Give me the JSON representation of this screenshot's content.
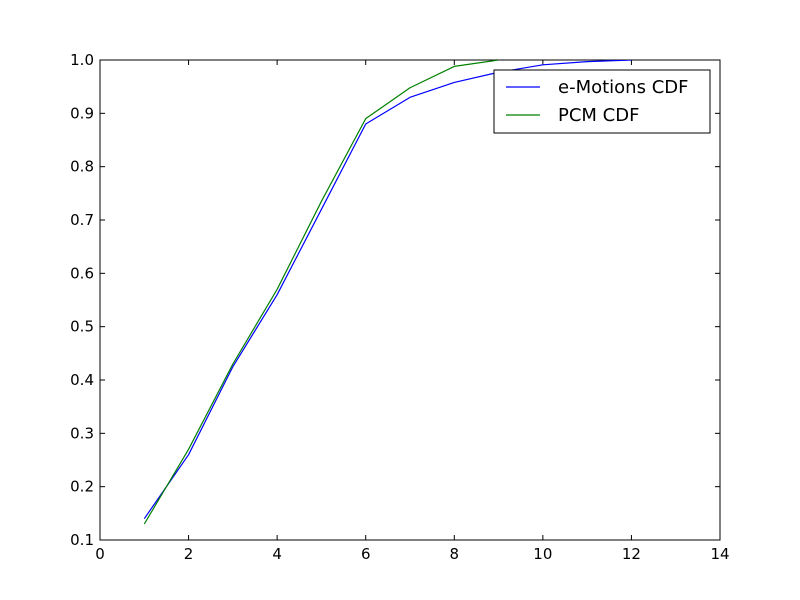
{
  "chart_data": {
    "type": "line",
    "title": "",
    "xlabel": "",
    "ylabel": "",
    "xlim": [
      0,
      14
    ],
    "ylim": [
      0.1,
      1.0
    ],
    "x_ticks": [
      0,
      2,
      4,
      6,
      8,
      10,
      12,
      14
    ],
    "x_tick_labels": [
      "0",
      "2",
      "4",
      "6",
      "8",
      "10",
      "12",
      "14"
    ],
    "y_ticks": [
      0.1,
      0.2,
      0.3,
      0.4,
      0.5,
      0.6,
      0.7,
      0.8,
      0.9,
      1.0
    ],
    "y_tick_labels": [
      "0.1",
      "0.2",
      "0.3",
      "0.4",
      "0.5",
      "0.6",
      "0.7",
      "0.8",
      "0.9",
      "1.0"
    ],
    "grid": false,
    "legend_position": "top-right",
    "series": [
      {
        "name": "e-Motions CDF",
        "color": "#0000ff",
        "x": [
          1,
          2,
          3,
          4,
          5,
          6,
          7,
          8,
          9,
          10,
          11,
          12
        ],
        "y": [
          0.14,
          0.26,
          0.425,
          0.56,
          0.72,
          0.88,
          0.93,
          0.958,
          0.977,
          0.991,
          0.997,
          1.0
        ]
      },
      {
        "name": "PCM CDF",
        "color": "#008000",
        "x": [
          1,
          2,
          3,
          4,
          5,
          6,
          7,
          8,
          9
        ],
        "y": [
          0.13,
          0.27,
          0.43,
          0.57,
          0.735,
          0.89,
          0.948,
          0.988,
          1.0
        ]
      }
    ]
  }
}
